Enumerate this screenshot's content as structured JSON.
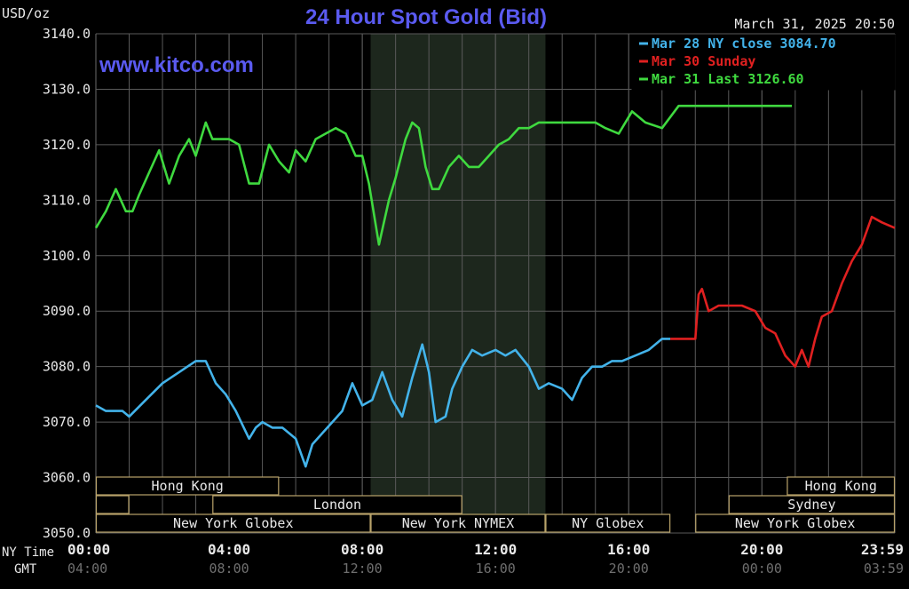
{
  "header": {
    "unit": "USD/oz",
    "title": "24 Hour Spot Gold (Bid)",
    "watermark": "www.kitco.com",
    "timestamp": "March 31, 2025 20:50"
  },
  "legend": [
    {
      "label": "Mar 28 NY close 3084.70",
      "color": "#43b3ea"
    },
    {
      "label": "Mar 30 Sunday",
      "color": "#e02020"
    },
    {
      "label": "Mar 31 Last 3126.60",
      "color": "#3fd93f"
    }
  ],
  "colors": {
    "background": "#000000",
    "grid": "#5a5a5a",
    "text": "#e8e8e8",
    "title": "#5a5af0",
    "session_fill": "#1d271d",
    "band_border": "#b9a36a"
  },
  "time_axis": {
    "row_labels": [
      "NY Time",
      "GMT"
    ],
    "ny_ticks": [
      "00:00",
      "04:00",
      "08:00",
      "12:00",
      "16:00",
      "20:00",
      "23:59"
    ],
    "gmt_ticks": [
      "04:00",
      "08:00",
      "12:00",
      "16:00",
      "20:00",
      "00:00",
      "03:59"
    ]
  },
  "markets": [
    {
      "row": 0,
      "start": 0,
      "end": 5.5,
      "label": "Hong Kong"
    },
    {
      "row": 0,
      "start": 20.75,
      "end": 23.99,
      "label": "Hong Kong"
    },
    {
      "row": 1,
      "start": 0,
      "end": 1.0,
      "label": ""
    },
    {
      "row": 1,
      "start": 3.5,
      "end": 11.0,
      "label": "London"
    },
    {
      "row": 1,
      "start": 19.0,
      "end": 23.99,
      "label": "Sydney"
    },
    {
      "row": 2,
      "start": 0,
      "end": 8.25,
      "label": "New York Globex"
    },
    {
      "row": 2,
      "start": 8.25,
      "end": 13.5,
      "label": "New York NYMEX"
    },
    {
      "row": 2,
      "start": 13.5,
      "end": 17.25,
      "label": "NY Globex"
    },
    {
      "row": 2,
      "start": 18.0,
      "end": 23.99,
      "label": "New York Globex"
    }
  ],
  "chart_data": {
    "type": "line",
    "xlabel": "NY Time",
    "ylabel": "USD/oz",
    "xlim": [
      0,
      23.99
    ],
    "ylim": [
      3050,
      3140
    ],
    "yticks": [
      "3050.0",
      "3060.0",
      "3070.0",
      "3080.0",
      "3090.0",
      "3100.0",
      "3110.0",
      "3120.0",
      "3130.0",
      "3140.0"
    ],
    "grid": true,
    "legend_position": "top-right",
    "highlight_window": [
      8.25,
      13.5
    ],
    "series": [
      {
        "name": "Mar 28 NY close 3084.70",
        "color": "#43b3ea",
        "x": [
          0,
          0.3,
          0.8,
          1.0,
          1.5,
          2.0,
          2.5,
          3.0,
          3.3,
          3.6,
          3.9,
          4.2,
          4.6,
          4.8,
          5.0,
          5.3,
          5.6,
          6.0,
          6.3,
          6.5,
          6.8,
          7.1,
          7.4,
          7.7,
          8.0,
          8.3,
          8.6,
          8.9,
          9.2,
          9.5,
          9.8,
          10.0,
          10.2,
          10.5,
          10.7,
          11.0,
          11.3,
          11.6,
          12.0,
          12.3,
          12.6,
          13.0,
          13.3,
          13.6,
          14.0,
          14.3,
          14.6,
          14.9,
          15.2,
          15.5,
          15.8,
          16.2,
          16.6,
          17.0,
          17.25
        ],
        "y": [
          3073,
          3072,
          3072,
          3071,
          3074,
          3077,
          3079,
          3081,
          3081,
          3077,
          3075,
          3072,
          3067,
          3069,
          3070,
          3069,
          3069,
          3067,
          3062,
          3066,
          3068,
          3070,
          3072,
          3077,
          3073,
          3074,
          3079,
          3074,
          3071,
          3078,
          3084,
          3079,
          3070,
          3071,
          3076,
          3080,
          3083,
          3082,
          3083,
          3082,
          3083,
          3080,
          3076,
          3077,
          3076,
          3074,
          3078,
          3080,
          3080,
          3081,
          3081,
          3082,
          3083,
          3085,
          3085
        ]
      },
      {
        "name": "Mar 30 Sunday",
        "color": "#e02020",
        "x": [
          17.25,
          18.0,
          18.1,
          18.2,
          18.4,
          18.7,
          19.0,
          19.4,
          19.8,
          20.1,
          20.4,
          20.7,
          21.0,
          21.2,
          21.4,
          21.6,
          21.8,
          22.1,
          22.4,
          22.7,
          23.0,
          23.3,
          23.6,
          23.99
        ],
        "y": [
          3085,
          3085,
          3093,
          3094,
          3090,
          3091,
          3091,
          3091,
          3090,
          3087,
          3086,
          3082,
          3080,
          3083,
          3080,
          3085,
          3089,
          3090,
          3095,
          3099,
          3102,
          3107,
          3106,
          3105
        ]
      },
      {
        "name": "Mar 31 Last 3126.60",
        "color": "#3fd93f",
        "x": [
          0,
          0.3,
          0.6,
          0.9,
          1.1,
          1.3,
          1.6,
          1.9,
          2.2,
          2.5,
          2.8,
          3.0,
          3.3,
          3.5,
          3.7,
          4.0,
          4.3,
          4.6,
          4.9,
          5.2,
          5.5,
          5.8,
          6.0,
          6.3,
          6.6,
          6.9,
          7.2,
          7.5,
          7.8,
          8.0,
          8.2,
          8.5,
          8.8,
          9.0,
          9.3,
          9.5,
          9.7,
          9.9,
          10.1,
          10.3,
          10.6,
          10.9,
          11.2,
          11.5,
          11.8,
          12.1,
          12.4,
          12.7,
          13.0,
          13.3,
          13.6,
          14.0,
          14.3,
          14.6,
          15.0,
          15.3,
          15.7,
          16.1,
          16.5,
          17.0,
          17.5,
          18.0,
          18.4,
          18.8,
          19.2,
          19.6,
          19.9,
          20.1,
          20.4,
          20.7,
          20.9
        ],
        "y": [
          3105,
          3108,
          3112,
          3108,
          3108,
          3111,
          3115,
          3119,
          3113,
          3118,
          3121,
          3118,
          3124,
          3121,
          3121,
          3121,
          3120,
          3113,
          3113,
          3120,
          3117,
          3115,
          3119,
          3117,
          3121,
          3122,
          3123,
          3122,
          3118,
          3118,
          3113,
          3102,
          3110,
          3114,
          3121,
          3124,
          3123,
          3116,
          3112,
          3112,
          3116,
          3118,
          3116,
          3116,
          3118,
          3120,
          3121,
          3123,
          3123,
          3124,
          3124,
          3124,
          3124,
          3124,
          3124,
          3123,
          3122,
          3126,
          3124,
          3123,
          3127,
          3127,
          3127,
          3127,
          3127,
          3127,
          3127,
          3127,
          3127,
          3127,
          3127
        ]
      }
    ]
  }
}
